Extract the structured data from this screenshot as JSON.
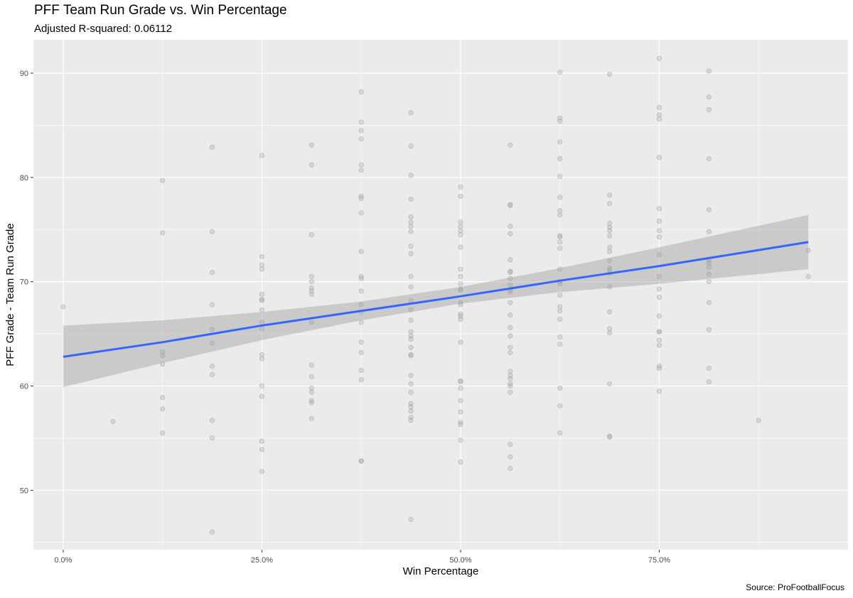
{
  "chart_data": {
    "type": "scatter",
    "title": "PFF Team Run Grade vs. Win Percentage",
    "subtitle": "Adjusted R-squared:  0.06112",
    "caption": "Source: ProFootballFocus",
    "xlabel": "Win Percentage",
    "ylabel": "PFF Grade - Team Run Grade",
    "xlim": [
      -0.0375,
      0.9875
    ],
    "ylim": [
      44.3,
      93.2
    ],
    "x_ticks": [
      0,
      0.25,
      0.5,
      0.75
    ],
    "x_tick_labels": [
      "0.0%",
      "25.0%",
      "50.0%",
      "75.0%"
    ],
    "y_ticks": [
      50,
      60,
      70,
      80,
      90
    ],
    "y_tick_labels": [
      "50",
      "60",
      "70",
      "80",
      "90"
    ],
    "grid": true,
    "background": "#ebebeb",
    "point_color": "#9a9a9a",
    "fit": {
      "method": "linear",
      "color": "#3366ff",
      "band_color": "#999999",
      "x": [
        0,
        0.125,
        0.25,
        0.375,
        0.5,
        0.625,
        0.75,
        0.9375
      ],
      "y": [
        62.8,
        64.2,
        65.8,
        67.2,
        68.6,
        70.1,
        71.5,
        73.8
      ],
      "lower": [
        59.9,
        62.2,
        64.4,
        66.3,
        67.9,
        69.0,
        69.8,
        71.2
      ],
      "upper": [
        65.8,
        66.3,
        67.1,
        68.1,
        69.5,
        71.3,
        73.3,
        76.4
      ]
    },
    "points": [
      [
        0,
        67.6
      ],
      [
        0.0625,
        56.6
      ],
      [
        0.125,
        79.7
      ],
      [
        0.125,
        74.7
      ],
      [
        0.125,
        63.3
      ],
      [
        0.125,
        62.9
      ],
      [
        0.125,
        62.1
      ],
      [
        0.125,
        58.9
      ],
      [
        0.125,
        57.8
      ],
      [
        0.125,
        55.5
      ],
      [
        0.1875,
        82.9
      ],
      [
        0.1875,
        74.8
      ],
      [
        0.1875,
        70.9
      ],
      [
        0.1875,
        67.8
      ],
      [
        0.1875,
        65.4
      ],
      [
        0.1875,
        64.1
      ],
      [
        0.1875,
        61.9
      ],
      [
        0.1875,
        61.1
      ],
      [
        0.1875,
        56.7
      ],
      [
        0.1875,
        55.0
      ],
      [
        0.1875,
        46.0
      ],
      [
        0.25,
        82.1
      ],
      [
        0.25,
        72.4
      ],
      [
        0.25,
        71.6
      ],
      [
        0.25,
        71.2
      ],
      [
        0.25,
        68.8
      ],
      [
        0.25,
        68.3
      ],
      [
        0.25,
        68.2
      ],
      [
        0.25,
        67.3
      ],
      [
        0.25,
        66.1
      ],
      [
        0.25,
        65.5
      ],
      [
        0.25,
        63.0
      ],
      [
        0.25,
        62.6
      ],
      [
        0.25,
        60.0
      ],
      [
        0.25,
        59.0
      ],
      [
        0.25,
        54.7
      ],
      [
        0.25,
        53.9
      ],
      [
        0.25,
        51.8
      ],
      [
        0.3125,
        83.1
      ],
      [
        0.3125,
        81.2
      ],
      [
        0.3125,
        74.5
      ],
      [
        0.3125,
        70.5
      ],
      [
        0.3125,
        70.0
      ],
      [
        0.3125,
        69.4
      ],
      [
        0.3125,
        69.1
      ],
      [
        0.3125,
        68.8
      ],
      [
        0.3125,
        66.1
      ],
      [
        0.3125,
        62.0
      ],
      [
        0.3125,
        60.9
      ],
      [
        0.3125,
        59.8
      ],
      [
        0.3125,
        59.4
      ],
      [
        0.3125,
        58.6
      ],
      [
        0.3125,
        58.4
      ],
      [
        0.3125,
        56.9
      ],
      [
        0.375,
        88.2
      ],
      [
        0.375,
        85.3
      ],
      [
        0.375,
        84.5
      ],
      [
        0.375,
        83.7
      ],
      [
        0.375,
        81.2
      ],
      [
        0.375,
        80.7
      ],
      [
        0.375,
        78.2
      ],
      [
        0.375,
        78.0
      ],
      [
        0.375,
        76.6
      ],
      [
        0.375,
        72.9
      ],
      [
        0.375,
        70.5
      ],
      [
        0.375,
        70.3
      ],
      [
        0.375,
        69.1
      ],
      [
        0.375,
        67.8
      ],
      [
        0.375,
        67.1
      ],
      [
        0.375,
        66.1
      ],
      [
        0.375,
        64.2
      ],
      [
        0.375,
        63.2
      ],
      [
        0.375,
        61.5
      ],
      [
        0.375,
        60.6
      ],
      [
        0.375,
        52.8
      ],
      [
        0.375,
        52.8
      ],
      [
        0.4375,
        86.2
      ],
      [
        0.4375,
        83.0
      ],
      [
        0.4375,
        80.2
      ],
      [
        0.4375,
        77.9
      ],
      [
        0.4375,
        76.2
      ],
      [
        0.4375,
        75.7
      ],
      [
        0.4375,
        75.3
      ],
      [
        0.4375,
        74.8
      ],
      [
        0.4375,
        73.4
      ],
      [
        0.4375,
        72.7
      ],
      [
        0.4375,
        70.5
      ],
      [
        0.4375,
        69.5
      ],
      [
        0.4375,
        68.2
      ],
      [
        0.4375,
        67.3
      ],
      [
        0.4375,
        66.3
      ],
      [
        0.4375,
        65.2
      ],
      [
        0.4375,
        64.8
      ],
      [
        0.4375,
        64.5
      ],
      [
        0.4375,
        63.7
      ],
      [
        0.4375,
        63.0
      ],
      [
        0.4375,
        62.9
      ],
      [
        0.4375,
        61.0
      ],
      [
        0.4375,
        60.2
      ],
      [
        0.4375,
        59.4
      ],
      [
        0.4375,
        58.3
      ],
      [
        0.4375,
        58.0
      ],
      [
        0.4375,
        57.6
      ],
      [
        0.4375,
        57.0
      ],
      [
        0.4375,
        56.7
      ],
      [
        0.4375,
        47.2
      ],
      [
        0.5,
        79.1
      ],
      [
        0.5,
        78.2
      ],
      [
        0.5,
        75.7
      ],
      [
        0.5,
        75.3
      ],
      [
        0.5,
        74.9
      ],
      [
        0.5,
        74.5
      ],
      [
        0.5,
        73.3
      ],
      [
        0.5,
        71.2
      ],
      [
        0.5,
        70.5
      ],
      [
        0.5,
        69.8
      ],
      [
        0.5,
        69.3
      ],
      [
        0.5,
        69.2
      ],
      [
        0.5,
        68.0
      ],
      [
        0.5,
        67.8
      ],
      [
        0.5,
        66.9
      ],
      [
        0.5,
        66.7
      ],
      [
        0.5,
        66.4
      ],
      [
        0.5,
        64.2
      ],
      [
        0.5,
        60.5
      ],
      [
        0.5,
        60.4
      ],
      [
        0.5,
        59.8
      ],
      [
        0.5,
        58.6
      ],
      [
        0.5,
        57.5
      ],
      [
        0.5,
        56.5
      ],
      [
        0.5,
        56.3
      ],
      [
        0.5,
        54.8
      ],
      [
        0.5,
        52.7
      ],
      [
        0.5625,
        83.1
      ],
      [
        0.5625,
        77.4
      ],
      [
        0.5625,
        77.3
      ],
      [
        0.5625,
        75.3
      ],
      [
        0.5625,
        74.6
      ],
      [
        0.5625,
        72.1
      ],
      [
        0.5625,
        71.0
      ],
      [
        0.5625,
        70.9
      ],
      [
        0.5625,
        70.3
      ],
      [
        0.5625,
        69.7
      ],
      [
        0.5625,
        69.2
      ],
      [
        0.5625,
        69.0
      ],
      [
        0.5625,
        68.0
      ],
      [
        0.5625,
        66.8
      ],
      [
        0.5625,
        65.6
      ],
      [
        0.5625,
        64.8
      ],
      [
        0.5625,
        63.7
      ],
      [
        0.5625,
        63.2
      ],
      [
        0.5625,
        61.4
      ],
      [
        0.5625,
        61.0
      ],
      [
        0.5625,
        60.7
      ],
      [
        0.5625,
        60.2
      ],
      [
        0.5625,
        60.0
      ],
      [
        0.5625,
        59.4
      ],
      [
        0.5625,
        54.4
      ],
      [
        0.5625,
        53.2
      ],
      [
        0.5625,
        52.1
      ],
      [
        0.625,
        90.1
      ],
      [
        0.625,
        85.7
      ],
      [
        0.625,
        85.4
      ],
      [
        0.625,
        83.4
      ],
      [
        0.625,
        81.8
      ],
      [
        0.625,
        80.1
      ],
      [
        0.625,
        78.1
      ],
      [
        0.625,
        76.8
      ],
      [
        0.625,
        76.4
      ],
      [
        0.625,
        74.4
      ],
      [
        0.625,
        74.3
      ],
      [
        0.625,
        73.8
      ],
      [
        0.625,
        73.2
      ],
      [
        0.625,
        71.2
      ],
      [
        0.625,
        70.0
      ],
      [
        0.625,
        69.8
      ],
      [
        0.625,
        68.7
      ],
      [
        0.625,
        67.6
      ],
      [
        0.625,
        67.2
      ],
      [
        0.625,
        66.4
      ],
      [
        0.625,
        64.7
      ],
      [
        0.625,
        64.0
      ],
      [
        0.625,
        59.8
      ],
      [
        0.625,
        58.1
      ],
      [
        0.625,
        55.5
      ],
      [
        0.6875,
        89.9
      ],
      [
        0.6875,
        78.3
      ],
      [
        0.6875,
        77.5
      ],
      [
        0.6875,
        75.6
      ],
      [
        0.6875,
        75.2
      ],
      [
        0.6875,
        74.9
      ],
      [
        0.6875,
        74.4
      ],
      [
        0.6875,
        73.3
      ],
      [
        0.6875,
        72.9
      ],
      [
        0.6875,
        72.0
      ],
      [
        0.6875,
        71.3
      ],
      [
        0.6875,
        71.1
      ],
      [
        0.6875,
        70.8
      ],
      [
        0.6875,
        69.5
      ],
      [
        0.6875,
        67.1
      ],
      [
        0.6875,
        65.5
      ],
      [
        0.6875,
        65.1
      ],
      [
        0.6875,
        60.2
      ],
      [
        0.6875,
        55.2
      ],
      [
        0.6875,
        55.1
      ],
      [
        0.75,
        91.4
      ],
      [
        0.75,
        86.7
      ],
      [
        0.75,
        86.0
      ],
      [
        0.75,
        85.6
      ],
      [
        0.75,
        81.9
      ],
      [
        0.75,
        77.0
      ],
      [
        0.75,
        75.8
      ],
      [
        0.75,
        74.9
      ],
      [
        0.75,
        74.3
      ],
      [
        0.75,
        72.6
      ],
      [
        0.75,
        70.5
      ],
      [
        0.75,
        69.3
      ],
      [
        0.75,
        68.5
      ],
      [
        0.75,
        66.7
      ],
      [
        0.75,
        65.2
      ],
      [
        0.75,
        65.2
      ],
      [
        0.75,
        64.4
      ],
      [
        0.75,
        63.9
      ],
      [
        0.75,
        61.9
      ],
      [
        0.75,
        61.7
      ],
      [
        0.75,
        59.5
      ],
      [
        0.8125,
        90.2
      ],
      [
        0.8125,
        87.7
      ],
      [
        0.8125,
        86.5
      ],
      [
        0.8125,
        81.8
      ],
      [
        0.8125,
        76.9
      ],
      [
        0.8125,
        74.8
      ],
      [
        0.8125,
        72.0
      ],
      [
        0.8125,
        71.8
      ],
      [
        0.8125,
        71.4
      ],
      [
        0.8125,
        70.7
      ],
      [
        0.8125,
        70.0
      ],
      [
        0.8125,
        68.0
      ],
      [
        0.8125,
        65.4
      ],
      [
        0.8125,
        61.7
      ],
      [
        0.8125,
        60.4
      ],
      [
        0.875,
        56.7
      ],
      [
        0.9375,
        73.0
      ],
      [
        0.9375,
        70.5
      ]
    ]
  }
}
